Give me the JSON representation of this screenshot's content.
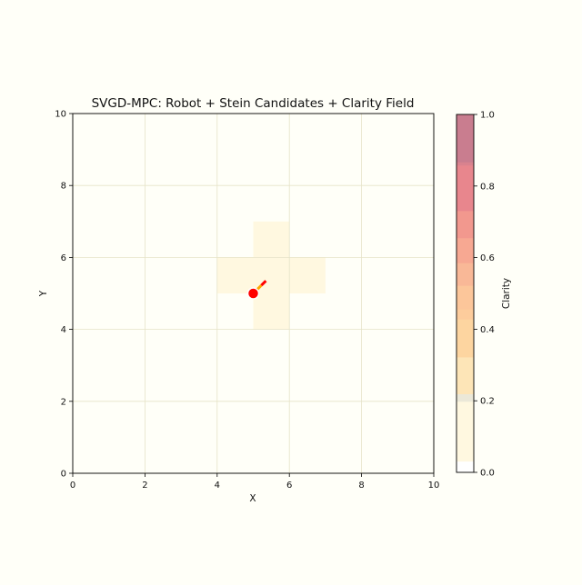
{
  "chart_data": {
    "type": "heatmap",
    "title": "SVGD-MPC: Robot + Stein Candidates + Clarity Field",
    "xlabel": "X",
    "ylabel": "Y",
    "xlim": [
      0,
      10
    ],
    "ylim": [
      0,
      10
    ],
    "xticks": [
      "0",
      "2",
      "4",
      "6",
      "8",
      "10"
    ],
    "yticks": [
      "0",
      "2",
      "4",
      "6",
      "8",
      "10"
    ],
    "grid": true,
    "background_color": "#fffff8",
    "clarity_cells": [
      {
        "x": [
          4,
          7
        ],
        "y": [
          5,
          6
        ],
        "color": "#fff8e0"
      },
      {
        "x": [
          5,
          6
        ],
        "y": [
          4,
          7
        ],
        "color": "#fff8e0"
      }
    ],
    "robot": {
      "x": 5,
      "y": 5,
      "color": "#ff0000"
    },
    "heading": {
      "from": [
        5.1,
        5.1
      ],
      "to": [
        5.35,
        5.35
      ],
      "colors": [
        "#ffa500",
        "#ff0000"
      ]
    },
    "colorbar": {
      "label": "Clarity",
      "range": [
        0,
        1
      ],
      "ticks": [
        "0.0",
        "0.2",
        "0.4",
        "0.6",
        "0.8",
        "1.0"
      ],
      "bands": [
        {
          "from": 0.0,
          "to": 0.031,
          "color": "#ffffff"
        },
        {
          "from": 0.031,
          "to": 0.198,
          "color": "#fff8e0"
        },
        {
          "from": 0.198,
          "to": 0.219,
          "color": "#ebe8d8"
        },
        {
          "from": 0.219,
          "to": 0.322,
          "color": "#fde5b7"
        },
        {
          "from": 0.322,
          "to": 0.428,
          "color": "#fdd5a0"
        },
        {
          "from": 0.428,
          "to": 0.456,
          "color": "#fdcc9c"
        },
        {
          "from": 0.456,
          "to": 0.522,
          "color": "#fcc69a"
        },
        {
          "from": 0.522,
          "to": 0.585,
          "color": "#f9b897"
        },
        {
          "from": 0.585,
          "to": 0.655,
          "color": "#f7a892"
        },
        {
          "from": 0.655,
          "to": 0.731,
          "color": "#f2988e"
        },
        {
          "from": 0.731,
          "to": 0.858,
          "color": "#e8868d"
        },
        {
          "from": 0.858,
          "to": 0.867,
          "color": "#d9828e"
        },
        {
          "from": 0.867,
          "to": 1.0,
          "color": "#c97d8f"
        }
      ]
    }
  }
}
